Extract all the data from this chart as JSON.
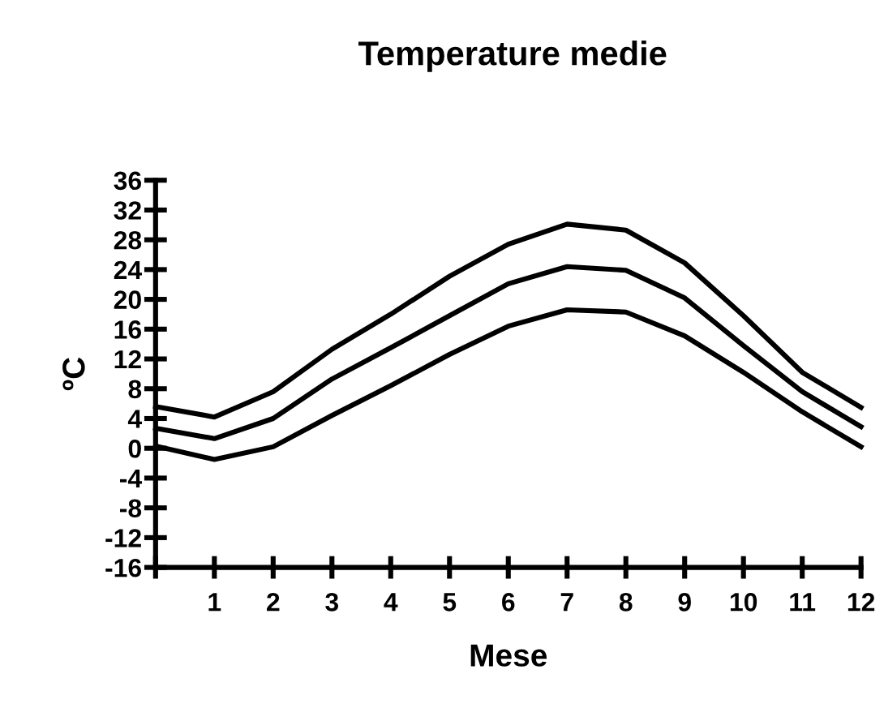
{
  "chart_data": {
    "type": "line",
    "title": "Temperature medie",
    "xlabel": "Mese",
    "ylabel": "ºC",
    "x": [
      0,
      1,
      2,
      3,
      4,
      5,
      6,
      7,
      8,
      9,
      10,
      11,
      12
    ],
    "series": [
      {
        "color": "#000000",
        "values": [
          5.6,
          4.2,
          7.6,
          13.3,
          18.0,
          23.1,
          27.4,
          30.1,
          29.3,
          24.9,
          17.8,
          10.2,
          5.5
        ]
      },
      {
        "color": "#000000",
        "values": [
          2.7,
          1.3,
          4.0,
          9.3,
          13.5,
          17.8,
          22.1,
          24.4,
          23.9,
          20.2,
          13.8,
          7.6,
          2.9
        ]
      },
      {
        "color": "#000000",
        "values": [
          0.3,
          -1.5,
          0.2,
          4.4,
          8.4,
          12.6,
          16.4,
          18.6,
          18.3,
          15.1,
          10.2,
          4.9,
          0.2
        ]
      }
    ],
    "xlim": [
      0,
      12
    ],
    "ylim": [
      -16,
      36
    ],
    "xticks": [
      {
        "value": 0,
        "label": null
      },
      1,
      2,
      3,
      4,
      5,
      6,
      7,
      8,
      9,
      10,
      11,
      12
    ],
    "yticks": [
      -16,
      -12,
      -8,
      -4,
      0,
      4,
      8,
      12,
      16,
      20,
      24,
      28,
      32,
      36
    ],
    "grid": false,
    "legend": false,
    "marker": "none",
    "line_style": "solid"
  }
}
